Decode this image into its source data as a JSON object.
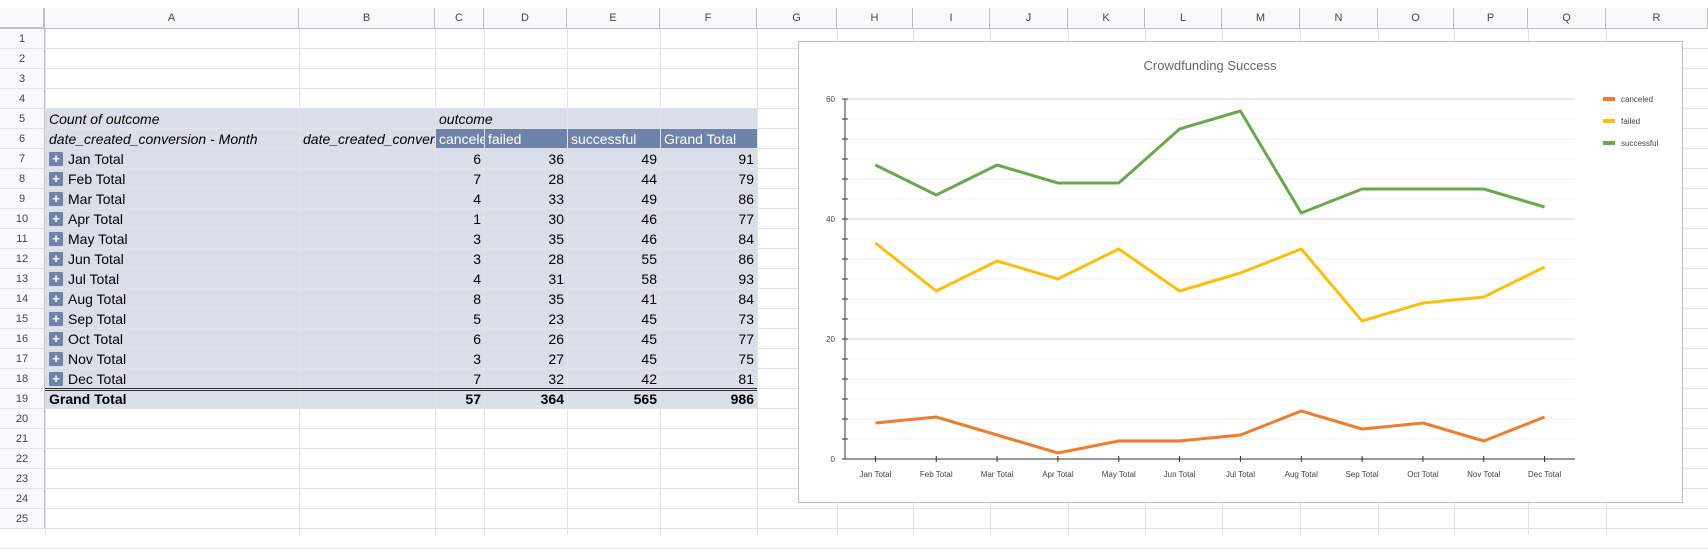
{
  "columns": [
    "A",
    "B",
    "C",
    "D",
    "E",
    "F",
    "G",
    "H",
    "I",
    "J",
    "K",
    "L",
    "M",
    "N",
    "O",
    "P",
    "Q",
    "R"
  ],
  "rows": [
    "1",
    "2",
    "3",
    "4",
    "5",
    "6",
    "7",
    "8",
    "9",
    "10",
    "11",
    "12",
    "13",
    "14",
    "15",
    "16",
    "17",
    "18",
    "19",
    "20",
    "21",
    "22",
    "23",
    "24",
    "25"
  ],
  "pivot": {
    "corner_label": "Count of outcome",
    "outcome_label": "outcome",
    "row_field_label": "date_created_conversion - Month",
    "col_b_label": "date_created_conversion",
    "headers": [
      "canceled",
      "failed",
      "successful",
      "Grand Total"
    ],
    "rows": [
      {
        "label": "Jan Total",
        "canceled": "6",
        "failed": "36",
        "successful": "49",
        "total": "91"
      },
      {
        "label": "Feb Total",
        "canceled": "7",
        "failed": "28",
        "successful": "44",
        "total": "79"
      },
      {
        "label": "Mar Total",
        "canceled": "4",
        "failed": "33",
        "successful": "49",
        "total": "86"
      },
      {
        "label": "Apr Total",
        "canceled": "1",
        "failed": "30",
        "successful": "46",
        "total": "77"
      },
      {
        "label": "May Total",
        "canceled": "3",
        "failed": "35",
        "successful": "46",
        "total": "84"
      },
      {
        "label": "Jun Total",
        "canceled": "3",
        "failed": "28",
        "successful": "55",
        "total": "86"
      },
      {
        "label": "Jul Total",
        "canceled": "4",
        "failed": "31",
        "successful": "58",
        "total": "93"
      },
      {
        "label": "Aug Total",
        "canceled": "8",
        "failed": "35",
        "successful": "41",
        "total": "84"
      },
      {
        "label": "Sep Total",
        "canceled": "5",
        "failed": "23",
        "successful": "45",
        "total": "73"
      },
      {
        "label": "Oct Total",
        "canceled": "6",
        "failed": "26",
        "successful": "45",
        "total": "77"
      },
      {
        "label": "Nov Total",
        "canceled": "3",
        "failed": "27",
        "successful": "45",
        "total": "75"
      },
      {
        "label": "Dec Total",
        "canceled": "7",
        "failed": "32",
        "successful": "42",
        "total": "81"
      }
    ],
    "grand_total": {
      "label": "Grand Total",
      "canceled": "57",
      "failed": "364",
      "successful": "565",
      "total": "986"
    }
  },
  "chart_data": {
    "type": "line",
    "title": "Crowdfunding Success",
    "categories": [
      "Jan Total",
      "Feb Total",
      "Mar Total",
      "Apr Total",
      "May Total",
      "Jun Total",
      "Jul Total",
      "Aug Total",
      "Sep Total",
      "Oct Total",
      "Nov Total",
      "Dec Total"
    ],
    "series": [
      {
        "name": "canceled",
        "color": "#ef7d2f",
        "values": [
          6,
          7,
          4,
          1,
          3,
          3,
          4,
          8,
          5,
          6,
          3,
          7
        ]
      },
      {
        "name": "failed",
        "color": "#fbbf0f",
        "values": [
          36,
          28,
          33,
          30,
          35,
          28,
          31,
          35,
          23,
          26,
          27,
          32
        ]
      },
      {
        "name": "successful",
        "color": "#6aa84f",
        "values": [
          49,
          44,
          49,
          46,
          46,
          55,
          58,
          41,
          45,
          45,
          45,
          42
        ]
      }
    ],
    "ylim": [
      0,
      60
    ],
    "yticks": [
      "0",
      "20",
      "40",
      "60"
    ],
    "grid": true,
    "legend": "right"
  }
}
